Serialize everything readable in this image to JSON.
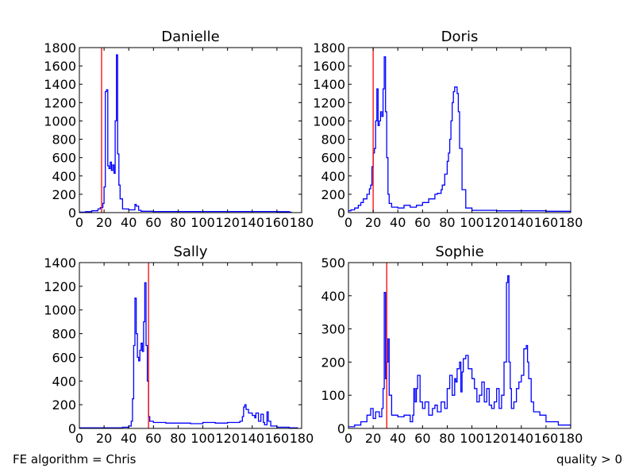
{
  "footer": {
    "left_text": "FE algorithm = Chris",
    "right_text": "quality > 0"
  },
  "colors": {
    "histogram": "#0000ff",
    "threshold": "#ff0000"
  },
  "chart_data": [
    {
      "type": "line",
      "title": "Danielle",
      "xlim": [
        0,
        180
      ],
      "ylim": [
        0,
        1800
      ],
      "xticks": [
        "0",
        "20",
        "40",
        "60",
        "80",
        "100",
        "120",
        "140",
        "160",
        "180"
      ],
      "yticks": [
        "0",
        "200",
        "400",
        "600",
        "800",
        "1000",
        "1200",
        "1400",
        "1600",
        "1800"
      ],
      "threshold_x": 18,
      "series": [
        {
          "x": [
            0,
            5,
            10,
            15,
            17,
            19,
            20,
            21,
            22,
            23,
            24,
            25,
            26,
            27,
            28,
            29,
            30,
            31,
            32,
            33,
            35,
            40,
            44,
            45,
            46,
            48,
            50,
            60,
            80,
            100,
            120,
            140,
            160,
            170
          ],
          "values": [
            5,
            10,
            20,
            40,
            55,
            100,
            280,
            1320,
            1340,
            510,
            480,
            550,
            460,
            520,
            430,
            1000,
            1720,
            640,
            300,
            150,
            40,
            30,
            30,
            90,
            70,
            25,
            15,
            12,
            12,
            12,
            12,
            12,
            10,
            5
          ]
        }
      ]
    },
    {
      "type": "line",
      "title": "Doris",
      "xlim": [
        0,
        180
      ],
      "ylim": [
        0,
        1800
      ],
      "xticks": [
        "0",
        "20",
        "40",
        "60",
        "80",
        "100",
        "120",
        "140",
        "160",
        "180"
      ],
      "yticks": [
        "0",
        "200",
        "400",
        "600",
        "800",
        "1000",
        "1200",
        "1400",
        "1600",
        "1800"
      ],
      "threshold_x": 20,
      "series": [
        {
          "x": [
            0,
            2,
            5,
            8,
            10,
            12,
            15,
            17,
            18,
            19,
            20,
            21,
            22,
            23,
            24,
            25,
            26,
            27,
            28,
            29,
            30,
            31,
            32,
            33,
            35,
            40,
            45,
            50,
            55,
            60,
            65,
            70,
            72,
            75,
            76,
            78,
            80,
            81,
            82,
            83,
            84,
            85,
            86,
            87,
            88,
            89,
            90,
            92,
            95,
            100,
            120,
            140,
            160,
            180
          ],
          "values": [
            20,
            30,
            50,
            80,
            110,
            150,
            200,
            260,
            300,
            500,
            650,
            700,
            1000,
            1350,
            950,
            1000,
            1100,
            1050,
            1350,
            1700,
            1100,
            600,
            200,
            100,
            60,
            50,
            80,
            60,
            80,
            110,
            150,
            200,
            210,
            250,
            300,
            420,
            560,
            650,
            800,
            1000,
            1200,
            1320,
            1370,
            1370,
            1300,
            1100,
            700,
            250,
            50,
            25,
            20,
            20,
            15,
            5
          ]
        }
      ]
    },
    {
      "type": "line",
      "title": "Sally",
      "xlim": [
        0,
        180
      ],
      "ylim": [
        0,
        1400
      ],
      "xticks": [
        "0",
        "20",
        "40",
        "60",
        "80",
        "100",
        "120",
        "140",
        "160",
        "180"
      ],
      "yticks": [
        "0",
        "200",
        "400",
        "600",
        "800",
        "1000",
        "1200",
        "1400"
      ],
      "threshold_x": 56,
      "series": [
        {
          "x": [
            0,
            10,
            20,
            30,
            35,
            40,
            42,
            43,
            44,
            45,
            46,
            47,
            48,
            49,
            50,
            51,
            52,
            53,
            54,
            55,
            56,
            57,
            60,
            70,
            80,
            90,
            100,
            110,
            120,
            130,
            132,
            133,
            134,
            135,
            137,
            140,
            142,
            143,
            145,
            147,
            149,
            150,
            152,
            153,
            155,
            160,
            170,
            175
          ],
          "values": [
            5,
            5,
            5,
            5,
            10,
            20,
            60,
            250,
            700,
            1100,
            800,
            600,
            570,
            660,
            720,
            650,
            900,
            1230,
            700,
            400,
            100,
            60,
            50,
            45,
            45,
            40,
            50,
            45,
            50,
            60,
            100,
            180,
            200,
            160,
            130,
            110,
            90,
            130,
            60,
            120,
            50,
            30,
            140,
            60,
            20,
            10,
            5,
            5
          ]
        }
      ]
    },
    {
      "type": "line",
      "title": "Sophie",
      "xlim": [
        0,
        180
      ],
      "ylim": [
        0,
        500
      ],
      "xticks": [
        "0",
        "20",
        "40",
        "60",
        "80",
        "100",
        "120",
        "140",
        "160",
        "180"
      ],
      "yticks": [
        "0",
        "100",
        "200",
        "300",
        "400",
        "500"
      ],
      "threshold_x": 31,
      "series": [
        {
          "x": [
            0,
            5,
            10,
            15,
            18,
            20,
            22,
            25,
            27,
            28,
            29,
            30,
            31,
            32,
            33,
            35,
            40,
            45,
            50,
            52,
            53,
            54,
            55,
            56,
            58,
            60,
            62,
            65,
            68,
            70,
            72,
            75,
            78,
            80,
            82,
            84,
            86,
            87,
            88,
            90,
            91,
            92,
            93,
            95,
            97,
            100,
            102,
            104,
            106,
            108,
            110,
            112,
            114,
            116,
            118,
            120,
            122,
            124,
            126,
            128,
            129,
            130,
            131,
            132,
            134,
            136,
            138,
            140,
            142,
            144,
            145,
            146,
            148,
            150,
            155,
            160,
            170,
            180
          ],
          "values": [
            5,
            10,
            20,
            40,
            60,
            30,
            50,
            35,
            60,
            120,
            410,
            150,
            200,
            270,
            100,
            40,
            35,
            40,
            20,
            40,
            120,
            80,
            120,
            160,
            80,
            60,
            80,
            40,
            60,
            70,
            50,
            80,
            60,
            120,
            160,
            100,
            150,
            140,
            180,
            200,
            110,
            170,
            210,
            220,
            180,
            150,
            120,
            80,
            100,
            140,
            80,
            120,
            70,
            60,
            80,
            120,
            60,
            100,
            200,
            440,
            460,
            200,
            120,
            60,
            80,
            120,
            140,
            160,
            240,
            250,
            200,
            150,
            80,
            50,
            40,
            20,
            10,
            5
          ]
        }
      ]
    }
  ]
}
